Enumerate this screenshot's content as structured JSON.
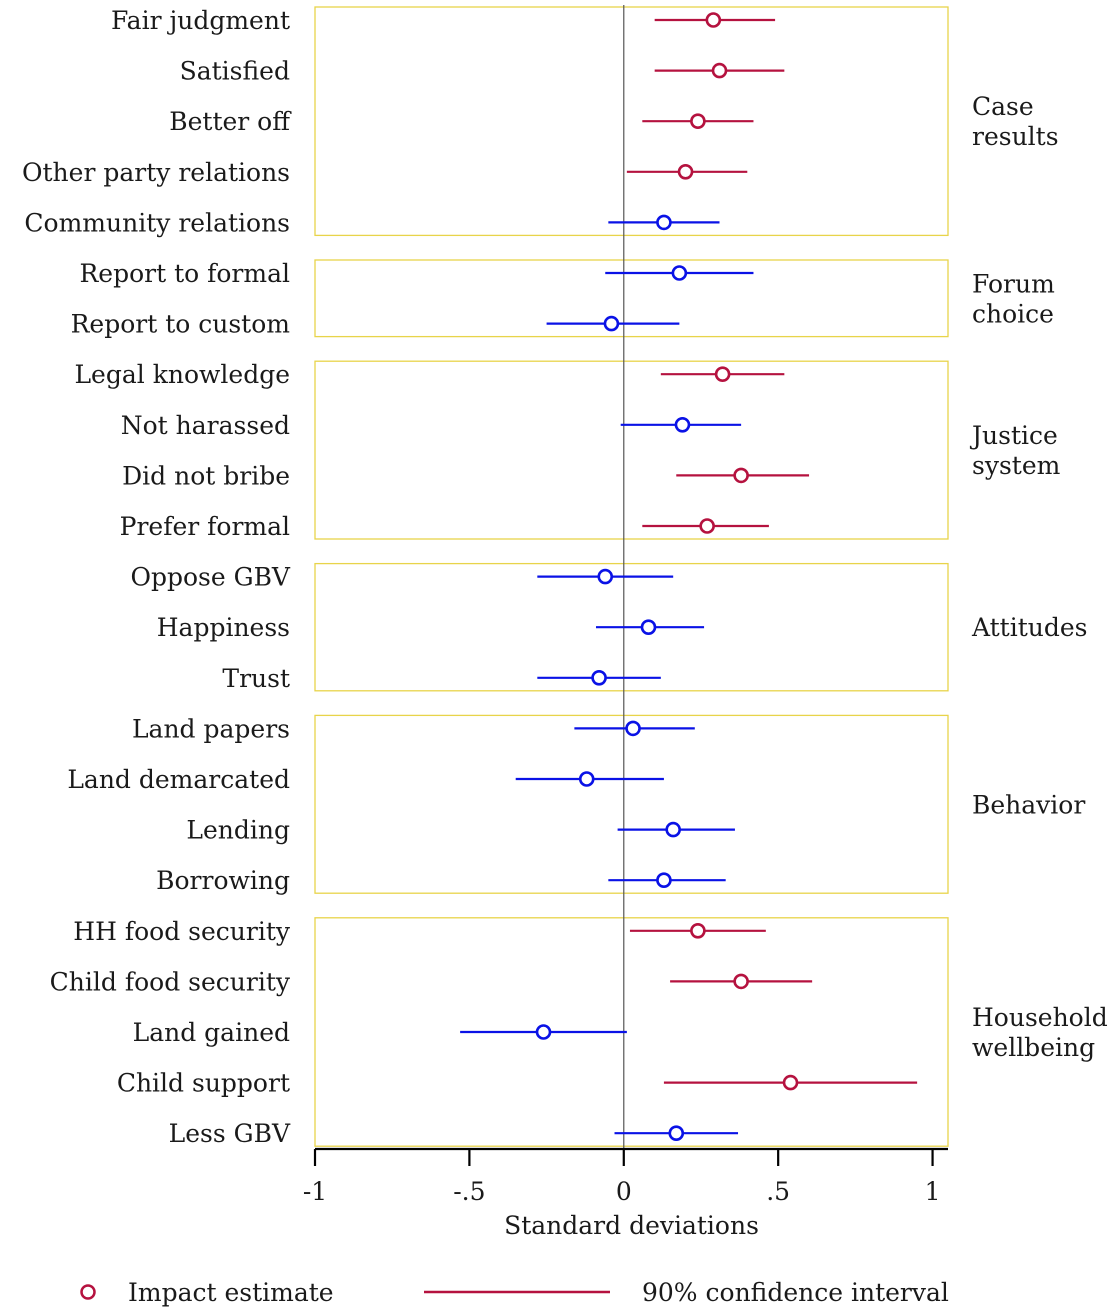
{
  "chart_data": {
    "type": "scatter",
    "subtype": "coefficient-plot",
    "xlabel": "Standard deviations",
    "xlim": [
      -1,
      1.05
    ],
    "xticks": [
      -1,
      -0.5,
      0,
      0.5,
      1
    ],
    "xtick_labels": [
      "-1",
      "-.5",
      "0",
      ".5",
      "1"
    ],
    "reference_line_x": 0,
    "grid": false,
    "legend_position": "bottom",
    "colors": {
      "significant": "#b5123f",
      "not_significant": "#0a12e6",
      "group_box_border": "#e8d44a",
      "axis": "#000000"
    },
    "legend": {
      "marker_label": "Impact estimate",
      "line_label": "90% confidence interval"
    },
    "groups": [
      {
        "label_lines": [
          "Case",
          "results"
        ],
        "rows": [
          {
            "label": "Fair judgment",
            "estimate": 0.29,
            "ci": [
              0.1,
              0.49
            ],
            "significant": true
          },
          {
            "label": "Satisfied",
            "estimate": 0.31,
            "ci": [
              0.1,
              0.52
            ],
            "significant": true
          },
          {
            "label": "Better off",
            "estimate": 0.24,
            "ci": [
              0.06,
              0.42
            ],
            "significant": true
          },
          {
            "label": "Other party relations",
            "estimate": 0.2,
            "ci": [
              0.01,
              0.4
            ],
            "significant": true
          },
          {
            "label": "Community relations",
            "estimate": 0.13,
            "ci": [
              -0.05,
              0.31
            ],
            "significant": false
          }
        ]
      },
      {
        "label_lines": [
          "Forum",
          "choice"
        ],
        "rows": [
          {
            "label": "Report to formal",
            "estimate": 0.18,
            "ci": [
              -0.06,
              0.42
            ],
            "significant": false
          },
          {
            "label": "Report to custom",
            "estimate": -0.04,
            "ci": [
              -0.25,
              0.18
            ],
            "significant": false
          }
        ]
      },
      {
        "label_lines": [
          "Justice",
          "system"
        ],
        "rows": [
          {
            "label": "Legal knowledge",
            "estimate": 0.32,
            "ci": [
              0.12,
              0.52
            ],
            "significant": true
          },
          {
            "label": "Not harassed",
            "estimate": 0.19,
            "ci": [
              -0.01,
              0.38
            ],
            "significant": false
          },
          {
            "label": "Did not bribe",
            "estimate": 0.38,
            "ci": [
              0.17,
              0.6
            ],
            "significant": true
          },
          {
            "label": "Prefer formal",
            "estimate": 0.27,
            "ci": [
              0.06,
              0.47
            ],
            "significant": true
          }
        ]
      },
      {
        "label_lines": [
          "Attitudes"
        ],
        "rows": [
          {
            "label": "Oppose GBV",
            "estimate": -0.06,
            "ci": [
              -0.28,
              0.16
            ],
            "significant": false
          },
          {
            "label": "Happiness",
            "estimate": 0.08,
            "ci": [
              -0.09,
              0.26
            ],
            "significant": false
          },
          {
            "label": "Trust",
            "estimate": -0.08,
            "ci": [
              -0.28,
              0.12
            ],
            "significant": false
          }
        ]
      },
      {
        "label_lines": [
          "Behavior"
        ],
        "rows": [
          {
            "label": "Land papers",
            "estimate": 0.03,
            "ci": [
              -0.16,
              0.23
            ],
            "significant": false
          },
          {
            "label": "Land demarcated",
            "estimate": -0.12,
            "ci": [
              -0.35,
              0.13
            ],
            "significant": false
          },
          {
            "label": "Lending",
            "estimate": 0.16,
            "ci": [
              -0.02,
              0.36
            ],
            "significant": false
          },
          {
            "label": "Borrowing",
            "estimate": 0.13,
            "ci": [
              -0.05,
              0.33
            ],
            "significant": false
          }
        ]
      },
      {
        "label_lines": [
          "Household",
          "wellbeing"
        ],
        "rows": [
          {
            "label": "HH food security",
            "estimate": 0.24,
            "ci": [
              0.02,
              0.46
            ],
            "significant": true
          },
          {
            "label": "Child food security",
            "estimate": 0.38,
            "ci": [
              0.15,
              0.61
            ],
            "significant": true
          },
          {
            "label": "Land gained",
            "estimate": -0.26,
            "ci": [
              -0.53,
              0.01
            ],
            "significant": false
          },
          {
            "label": "Child support",
            "estimate": 0.54,
            "ci": [
              0.13,
              0.95
            ],
            "significant": true
          },
          {
            "label": "Less GBV",
            "estimate": 0.17,
            "ci": [
              -0.03,
              0.37
            ],
            "significant": false
          }
        ]
      }
    ]
  }
}
